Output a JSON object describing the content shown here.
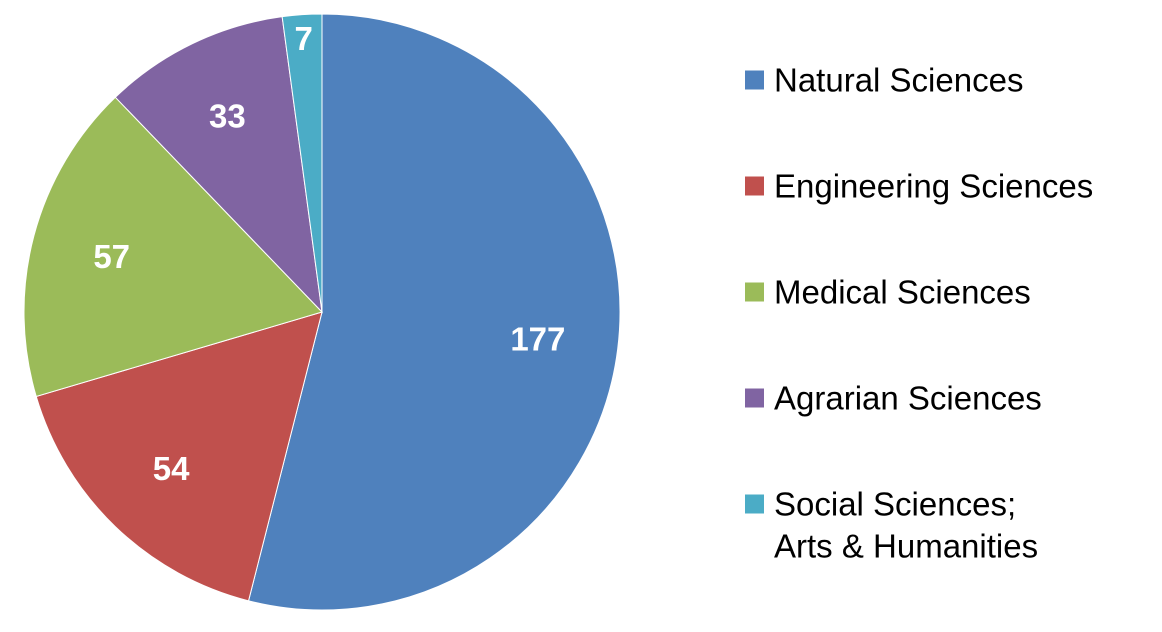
{
  "chart_data": {
    "type": "pie",
    "title": "",
    "legend_position": "right",
    "slices": [
      {
        "label": "Natural Sciences",
        "label_lines": [
          "Natural Sciences"
        ],
        "value": 177,
        "color": "#4F81BD"
      },
      {
        "label": "Engineering Sciences",
        "label_lines": [
          "Engineering Sciences"
        ],
        "value": 54,
        "color": "#C0504D"
      },
      {
        "label": "Medical Sciences",
        "label_lines": [
          "Medical Sciences"
        ],
        "value": 57,
        "color": "#9BBB59"
      },
      {
        "label": "Agrarian Sciences",
        "label_lines": [
          "Agrarian Sciences"
        ],
        "value": 33,
        "color": "#8064A2"
      },
      {
        "label": "Social Sciences; Arts & Humanities",
        "label_lines": [
          "Social Sciences;",
          "Arts & Humanities"
        ],
        "value": 7,
        "color": "#4BACC6"
      }
    ]
  }
}
